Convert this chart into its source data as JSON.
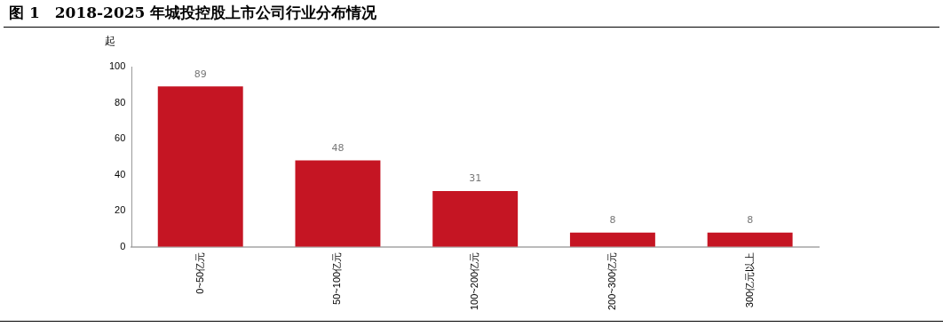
{
  "chart_data": {
    "type": "bar",
    "title": "图 1　2018-2025 年城投控股上市公司行业分布情况",
    "ylabel": "起",
    "categories": [
      "0~50亿元",
      "50~100亿元",
      "100~200亿元",
      "200~300亿元",
      "300亿元以上"
    ],
    "values": [
      89,
      48,
      31,
      8,
      8
    ],
    "color": "#c51523",
    "ylim": [
      0,
      100
    ],
    "yticks": [
      0,
      20,
      40,
      60,
      80,
      100
    ],
    "grid": false,
    "legend": false,
    "data_labels": true
  }
}
